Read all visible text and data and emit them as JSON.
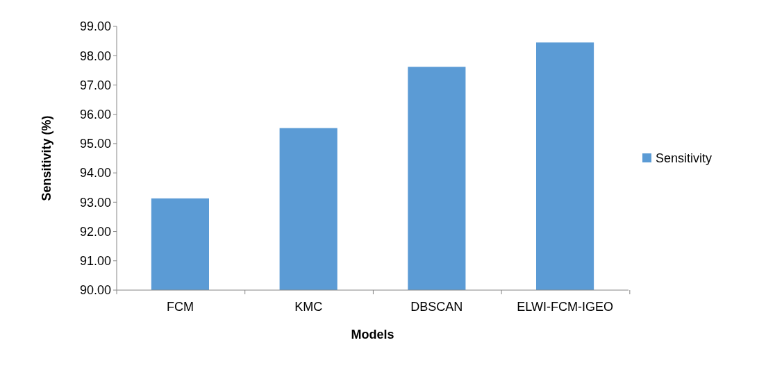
{
  "chart_data": {
    "type": "bar",
    "xlabel": "Models",
    "ylabel": "Sensitivity (%)",
    "categories": [
      "FCM",
      "KMC",
      "DBSCAN",
      "ELWI-FCM-IGEO"
    ],
    "series": [
      {
        "name": "Sensitivity",
        "color": "#5b9bd5",
        "values": [
          93.13,
          95.53,
          97.62,
          98.45
        ]
      }
    ],
    "ylim": [
      90,
      99
    ],
    "yticks": [
      {
        "value": 90,
        "label": "90.00"
      },
      {
        "value": 91,
        "label": "91.00"
      },
      {
        "value": 92,
        "label": "92.00"
      },
      {
        "value": 93,
        "label": "93.00"
      },
      {
        "value": 94,
        "label": "94.00"
      },
      {
        "value": 95,
        "label": "95.00"
      },
      {
        "value": 96,
        "label": "96.00"
      },
      {
        "value": 97,
        "label": "97.00"
      },
      {
        "value": 98,
        "label": "98.00"
      },
      {
        "value": 99,
        "label": "99.00"
      }
    ],
    "grid": false,
    "legend": "right"
  }
}
